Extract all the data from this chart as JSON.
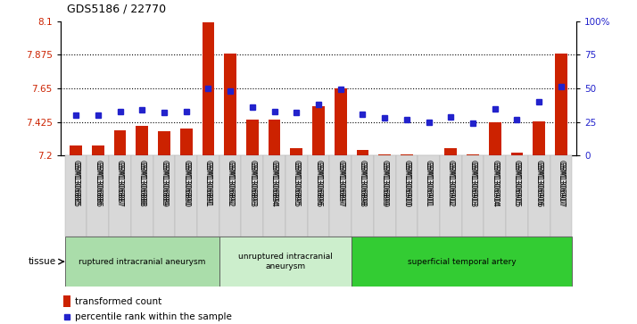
{
  "title": "GDS5186 / 22770",
  "samples": [
    "GSM1306885",
    "GSM1306886",
    "GSM1306887",
    "GSM1306888",
    "GSM1306889",
    "GSM1306890",
    "GSM1306891",
    "GSM1306892",
    "GSM1306893",
    "GSM1306894",
    "GSM1306895",
    "GSM1306896",
    "GSM1306897",
    "GSM1306898",
    "GSM1306899",
    "GSM1306900",
    "GSM1306901",
    "GSM1306902",
    "GSM1306903",
    "GSM1306904",
    "GSM1306905",
    "GSM1306906",
    "GSM1306907"
  ],
  "transformed_count": [
    7.27,
    7.27,
    7.37,
    7.4,
    7.36,
    7.38,
    8.09,
    7.88,
    7.44,
    7.44,
    7.25,
    7.53,
    7.65,
    7.24,
    7.21,
    7.21,
    7.2,
    7.25,
    7.21,
    7.42,
    7.22,
    7.43,
    7.88
  ],
  "percentile_rank": [
    30,
    30,
    33,
    34,
    32,
    33,
    50,
    48,
    36,
    33,
    32,
    38,
    49,
    31,
    28,
    27,
    25,
    29,
    24,
    35,
    27,
    40,
    51
  ],
  "ylim_left": [
    7.2,
    8.1
  ],
  "ylim_right": [
    0,
    100
  ],
  "yticks_left": [
    7.2,
    7.425,
    7.65,
    7.875,
    8.1
  ],
  "yticks_right": [
    0,
    25,
    50,
    75,
    100
  ],
  "ytick_labels_right": [
    "0",
    "25",
    "50",
    "75",
    "100%"
  ],
  "hlines": [
    7.425,
    7.65,
    7.875
  ],
  "bar_color": "#cc2200",
  "marker_color": "#2222cc",
  "groups": [
    {
      "label": "ruptured intracranial aneurysm",
      "start": 0,
      "end": 7,
      "color": "#aaddaa"
    },
    {
      "label": "unruptured intracranial\naneurysm",
      "start": 7,
      "end": 13,
      "color": "#cceecc"
    },
    {
      "label": "superficial temporal artery",
      "start": 13,
      "end": 23,
      "color": "#33cc33"
    }
  ],
  "tissue_label": "tissue",
  "legend_bar_label": "transformed count",
  "legend_marker_label": "percentile rank within the sample"
}
